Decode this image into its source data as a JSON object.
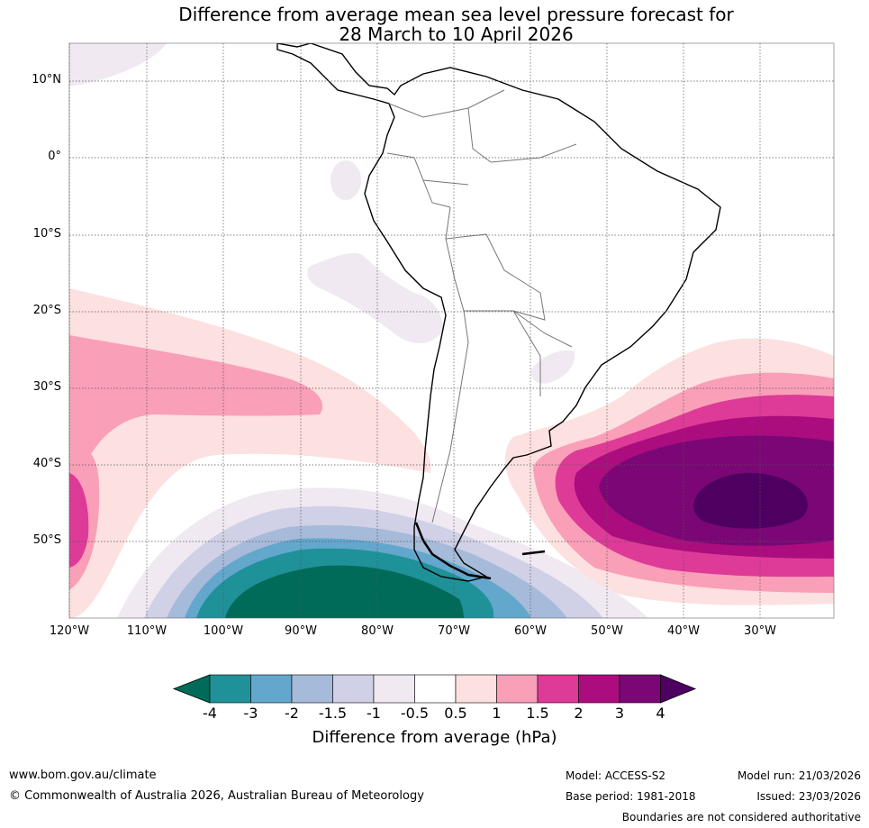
{
  "title_line1": "Difference from average mean sea level pressure forecast for",
  "title_line2": "28 March to 10 April 2026",
  "lat_labels": [
    "10°N",
    "0°",
    "10°S",
    "20°S",
    "30°S",
    "40°S",
    "50°S"
  ],
  "lon_labels": [
    "120°W",
    "110°W",
    "100°W",
    "90°W",
    "80°W",
    "70°W",
    "60°W",
    "50°W",
    "40°W",
    "30°W"
  ],
  "colorbar": {
    "ticks": [
      "-4",
      "-3",
      "-2",
      "-1.5",
      "-1",
      "-0.5",
      "0.5",
      "1",
      "1.5",
      "2",
      "3",
      "4"
    ],
    "colors": [
      "#1f9199",
      "#63a7cc",
      "#a6bad9",
      "#d0d0e6",
      "#f0e9f2",
      "#ffffff",
      "#fde0e0",
      "#f99fb8",
      "#de3a97",
      "#ab0d7e",
      "#7a0775"
    ],
    "low_extend_color": "#006b58",
    "high_extend_color": "#4d0060",
    "label": "Difference from average (hPa)"
  },
  "footer": {
    "website": "www.bom.gov.au/climate",
    "copyright": "© Commonwealth of Australia 2026, Australian Bureau of Meteorology",
    "model": "Model: ACCESS-S2",
    "base_period": "Base period: 1981-2018",
    "model_run": "Model run: 21/03/2026",
    "issued": "Issued: 23/03/2026",
    "disclaimer": "Boundaries are not considered authoritative"
  }
}
